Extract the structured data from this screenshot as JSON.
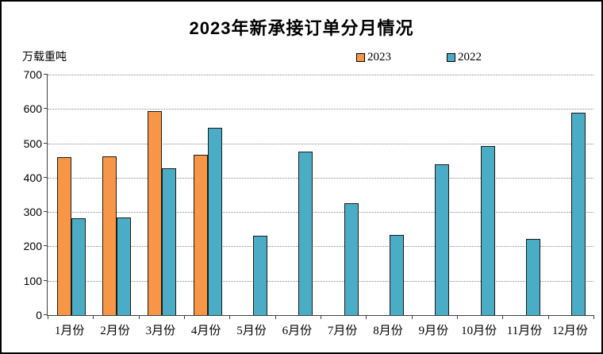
{
  "frame": {
    "background": "#ffffff",
    "border_color": "#000000"
  },
  "chart_data": {
    "type": "bar",
    "title": "2023年新承接订单分月情况",
    "unit_label": "万载重吨",
    "categories": [
      "1月份",
      "2月份",
      "3月份",
      "4月份",
      "5月份",
      "6月份",
      "7月份",
      "8月份",
      "9月份",
      "10月份",
      "11月份",
      "12月份"
    ],
    "series": [
      {
        "name": "2023",
        "color": "#F79646",
        "values": [
          460,
          462,
          593,
          466,
          null,
          null,
          null,
          null,
          null,
          null,
          null,
          null
        ]
      },
      {
        "name": "2022",
        "color": "#4BACC6",
        "values": [
          282,
          284,
          428,
          546,
          231,
          476,
          326,
          233,
          439,
          493,
          221,
          590
        ]
      }
    ],
    "ylim": [
      0,
      700
    ],
    "yticks": [
      0,
      100,
      200,
      300,
      400,
      500,
      600,
      700
    ],
    "grid": "horizontal-dotted",
    "legend_position": "top",
    "bar_border_color": "#1a1a1a",
    "axis_color": "#3f3f3f",
    "gridline_color": "#8c8c8c"
  }
}
